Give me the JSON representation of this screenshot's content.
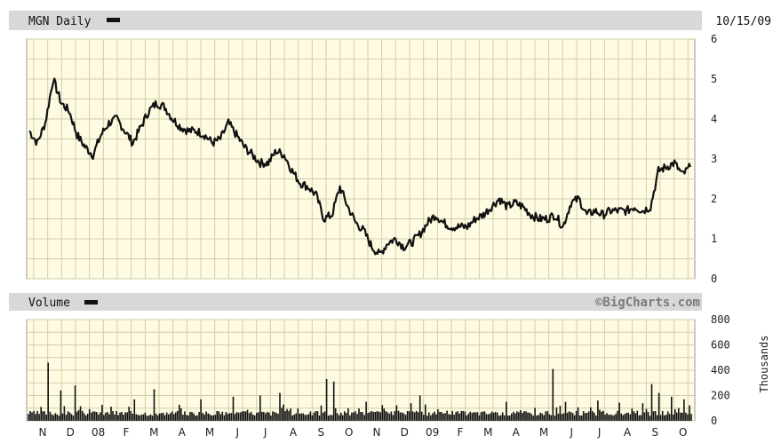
{
  "price_panel": {
    "label": "MGN Daily",
    "date": "10/15/09"
  },
  "volume_panel": {
    "label": "Volume",
    "watermark": "©BigCharts.com",
    "unit_label": "Thousands"
  },
  "chart_data": [
    {
      "type": "line",
      "title": "MGN Daily",
      "ylim": [
        0,
        6
      ],
      "y_ticks": [
        "6",
        "5",
        "4",
        "3",
        "2",
        "1",
        "0"
      ],
      "grid": true,
      "x_labels": [
        "N",
        "D",
        "08",
        "F",
        "M",
        "A",
        "M",
        "J",
        "J",
        "A",
        "S",
        "O",
        "N",
        "D",
        "09",
        "F",
        "M",
        "A",
        "M",
        "J",
        "J",
        "A",
        "S",
        "O"
      ],
      "series": [
        {
          "values": [
            3.7,
            3.4,
            3.9,
            5.0,
            4.4,
            4.2,
            3.6,
            3.3,
            3.1,
            3.6,
            3.9,
            4.0,
            3.7,
            3.4,
            3.8,
            4.2,
            4.4,
            4.3,
            4.0,
            3.8,
            3.7,
            3.7,
            3.6,
            3.4,
            3.5,
            3.9,
            3.6,
            3.3,
            3.1,
            2.9,
            2.9,
            3.2,
            3.1,
            2.7,
            2.4,
            2.3,
            2.1,
            1.5,
            1.6,
            2.3,
            1.8,
            1.4,
            1.2,
            0.8,
            0.6,
            0.9,
            1.0,
            0.8,
            0.9,
            1.1,
            1.4,
            1.6,
            1.4,
            1.3,
            1.3,
            1.3,
            1.5,
            1.6,
            1.8,
            2.0,
            1.8,
            1.9,
            1.8,
            1.6,
            1.5,
            1.5,
            1.6,
            1.3,
            1.9,
            2.0,
            1.6,
            1.7,
            1.6,
            1.7,
            1.7,
            1.7,
            1.8,
            1.7,
            1.8,
            2.7,
            2.8,
            2.9,
            2.6,
            2.8
          ]
        }
      ]
    },
    {
      "type": "bar",
      "title": "Volume",
      "ylabel": "Thousands",
      "ylim": [
        0,
        800
      ],
      "y_ticks": [
        "800",
        "600",
        "400",
        "200",
        "0"
      ],
      "grid": true,
      "spikes": [
        [
          0.02,
          110
        ],
        [
          0.03,
          460
        ],
        [
          0.05,
          240
        ],
        [
          0.07,
          280
        ],
        [
          0.16,
          170
        ],
        [
          0.19,
          250
        ],
        [
          0.26,
          170
        ],
        [
          0.31,
          190
        ],
        [
          0.35,
          200
        ],
        [
          0.38,
          220
        ],
        [
          0.45,
          330
        ],
        [
          0.46,
          310
        ],
        [
          0.51,
          150
        ],
        [
          0.59,
          200
        ],
        [
          0.72,
          150
        ],
        [
          0.79,
          410
        ],
        [
          0.81,
          150
        ],
        [
          0.86,
          160
        ],
        [
          0.94,
          290
        ],
        [
          0.95,
          220
        ],
        [
          0.97,
          190
        ],
        [
          0.99,
          170
        ]
      ],
      "baseline": [
        40,
        80
      ]
    }
  ]
}
